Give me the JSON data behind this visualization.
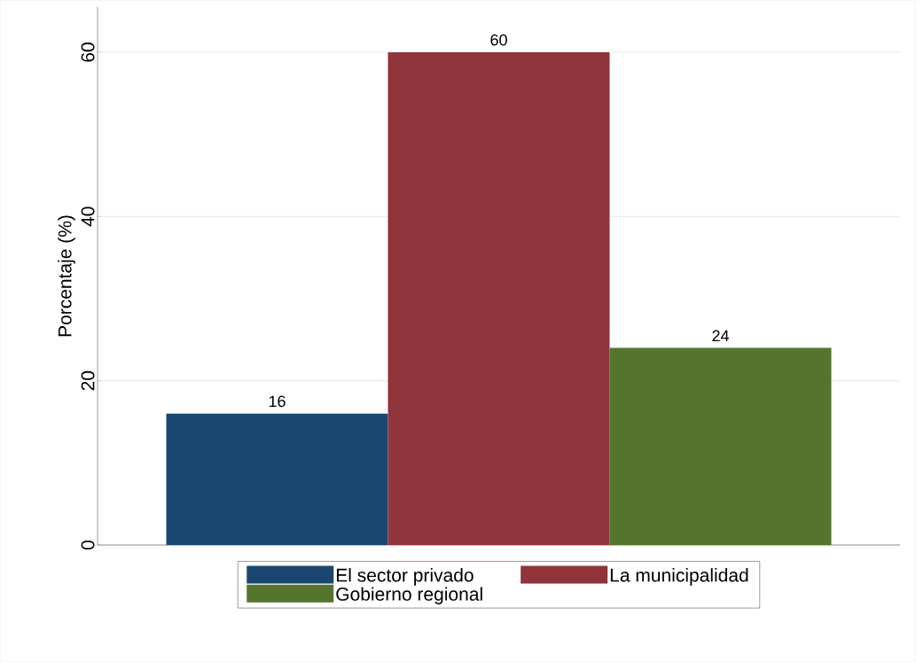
{
  "chart_data": {
    "type": "bar",
    "ylabel": "Porcentaje (%)",
    "categories": [
      null
    ],
    "series": [
      {
        "name": "El sector privado",
        "color": "#1a476f",
        "values": [
          16
        ]
      },
      {
        "name": "La municipalidad",
        "color": "#90353b",
        "values": [
          60
        ]
      },
      {
        "name": "Gobierno regional",
        "color": "#55752f",
        "values": [
          24
        ]
      }
    ],
    "ylim": [
      0,
      65.5
    ],
    "yticks": [
      0,
      20,
      40,
      60
    ],
    "grid": "y",
    "legend": "bottom",
    "data_labels": true
  }
}
